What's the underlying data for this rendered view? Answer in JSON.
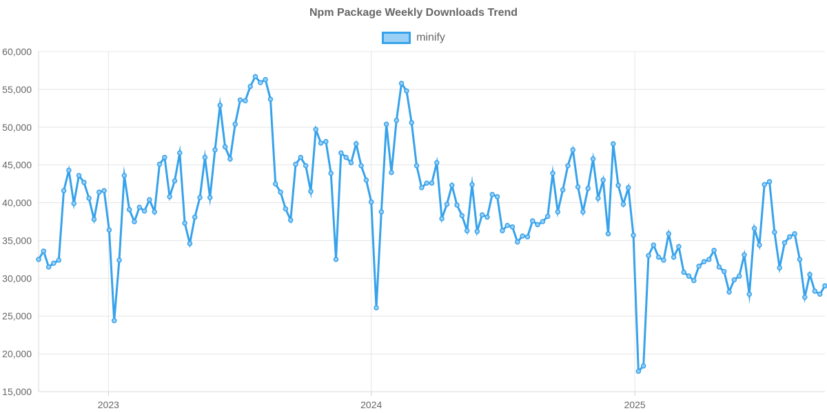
{
  "chart_data": {
    "type": "line",
    "title": "Npm Package Weekly Downloads Trend",
    "xlabel": "",
    "ylabel": "",
    "x_start": "2022-09-26",
    "x_interval_days": 7,
    "x_tick_labels": [
      "2023",
      "2024",
      "2025"
    ],
    "x_ticks": [
      "2023-01-01",
      "2024-01-01",
      "2025-01-01"
    ],
    "ylim": [
      15000,
      60000
    ],
    "y_ticks": [
      15000,
      20000,
      25000,
      30000,
      35000,
      40000,
      45000,
      50000,
      55000,
      60000
    ],
    "y_tick_labels": [
      "15,000",
      "20,000",
      "25,000",
      "30,000",
      "35,000",
      "40,000",
      "45,000",
      "50,000",
      "55,000",
      "60,000"
    ],
    "grid": true,
    "legend_position": "top",
    "series": [
      {
        "name": "minify",
        "color": "#36a2eb",
        "fill": "#9ad0f5",
        "values": [
          32500,
          33600,
          31500,
          32000,
          32400,
          41600,
          44300,
          39900,
          43600,
          42700,
          40600,
          37800,
          41400,
          41600,
          36400,
          24400,
          32400,
          43600,
          39100,
          37500,
          39400,
          38900,
          40400,
          38800,
          45100,
          46000,
          40800,
          42900,
          46600,
          37300,
          34600,
          38100,
          40700,
          46000,
          40700,
          47000,
          52900,
          47400,
          45800,
          50400,
          53600,
          53500,
          55400,
          56700,
          55900,
          56300,
          53700,
          42500,
          41400,
          39200,
          37700,
          45100,
          46000,
          44900,
          41500,
          49700,
          47900,
          48100,
          43900,
          32500,
          46600,
          46000,
          45300,
          47800,
          44900,
          43000,
          40100,
          26100,
          38800,
          50400,
          44000,
          50900,
          55800,
          54800,
          50600,
          44900,
          42000,
          42600,
          42600,
          45300,
          37900,
          39800,
          42300,
          39700,
          38300,
          36300,
          42400,
          36200,
          38400,
          38100,
          41100,
          40800,
          36300,
          37000,
          36800,
          34800,
          35600,
          35500,
          37600,
          37100,
          37500,
          38200,
          43900,
          38800,
          41700,
          44900,
          47000,
          42100,
          38800,
          41900,
          45800,
          40600,
          43000,
          35900,
          47800,
          42300,
          39800,
          42000,
          35700,
          17700,
          18400,
          33000,
          34400,
          32800,
          32400,
          35900,
          32800,
          34200,
          30800,
          30300,
          29700,
          31600,
          32200,
          32500,
          33700,
          31500,
          30900,
          28200,
          29800,
          30300,
          33100,
          27900,
          36600,
          34400,
          42400,
          42800,
          36100,
          31400,
          34700,
          35500,
          35900,
          32500,
          27500,
          30500,
          28300,
          27900,
          29000
        ]
      }
    ]
  }
}
